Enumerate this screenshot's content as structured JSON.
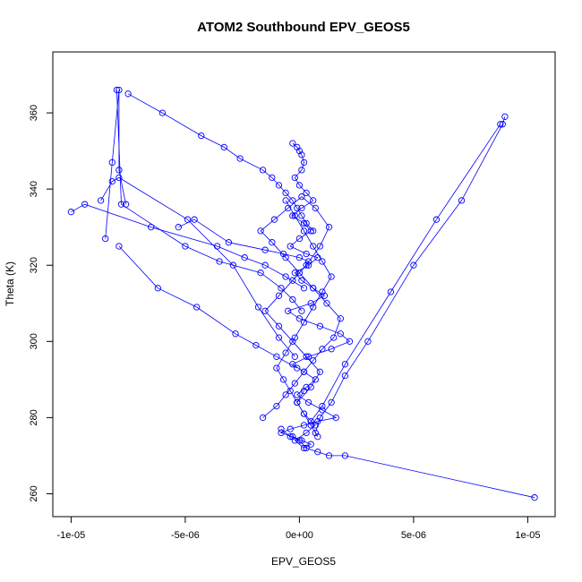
{
  "chart_data": {
    "type": "scatter",
    "title": "ATOM2 Southbound EPV_GEOS5",
    "xlabel": "EPV_GEOS5",
    "ylabel": "Theta (K)",
    "xlim": [
      -1.08e-05,
      1.12e-05
    ],
    "ylim": [
      254,
      376
    ],
    "x_ticks": [
      -1e-05,
      -5e-06,
      0,
      5e-06,
      1e-05
    ],
    "x_tick_labels": [
      "-1e-05",
      "-5e-06",
      "0e+00",
      "5e-06",
      "1e-05"
    ],
    "y_ticks": [
      260,
      280,
      300,
      320,
      340,
      360
    ],
    "y_tick_labels": [
      "260",
      "280",
      "300",
      "320",
      "340",
      "360"
    ],
    "grid": false,
    "legend": "none",
    "marker": "open-circle",
    "connected": true,
    "color": "#0000ff",
    "series": [
      {
        "x": [
          -7.5e-06,
          -6e-06,
          -4.3e-06,
          -3.3e-06,
          -2.6e-06,
          -1.6e-06,
          -1.2e-06,
          -9e-07,
          -6e-07,
          -3e-07,
          -1e-07,
          1e-07,
          3e-07,
          6e-07
        ],
        "y": [
          365,
          360,
          354,
          351,
          348,
          345,
          343,
          341,
          339,
          337,
          335,
          333,
          331,
          329
        ]
      },
      {
        "x": [
          -8.5e-06,
          -8.2e-06,
          -7.9e-06,
          -7.9e-06,
          -7.6e-06
        ],
        "y": [
          327,
          347,
          366,
          345,
          336
        ]
      },
      {
        "x": [
          -8e-06,
          -7.8e-06,
          -5e-06,
          -3.5e-06,
          -1.7e-06,
          -8e-07,
          -3e-07,
          1e-07
        ],
        "y": [
          366,
          336,
          325,
          321,
          318,
          314,
          311,
          308
        ]
      },
      {
        "x": [
          -1e-05,
          -9.4e-06,
          -6.5e-06,
          -3.6e-06,
          -2.4e-06,
          -1.5e-06,
          -6e-07,
          2e-07
        ],
        "y": [
          334,
          336,
          330,
          325,
          322,
          320,
          317,
          314
        ]
      },
      {
        "x": [
          -8.7e-06,
          -8.2e-06,
          -7.9e-06,
          -4.9e-06,
          -2.9e-06,
          -1.8e-06,
          -9e-07,
          -2e-07
        ],
        "y": [
          337,
          342,
          343,
          332,
          320,
          309,
          301,
          296
        ]
      },
      {
        "x": [
          -7.9e-06,
          -6.2e-06,
          -4.5e-06,
          -2.8e-06,
          -1.9e-06,
          -1e-06,
          -1e-07
        ],
        "y": [
          325,
          314,
          309,
          302,
          299,
          296,
          293
        ]
      },
      {
        "x": [
          -5.3e-06,
          -4.6e-06,
          -3.1e-06,
          -1.5e-06,
          -7e-07,
          0,
          4e-07
        ],
        "y": [
          330,
          332,
          326,
          324,
          323,
          322,
          321
        ]
      },
      {
        "x": [
          9e-06,
          8.9e-06,
          7.1e-06,
          5e-06,
          3e-06,
          2e-06,
          1.4e-06,
          9e-07,
          7e-07
        ],
        "y": [
          359,
          357,
          337,
          320,
          300,
          291,
          284,
          280,
          276
        ]
      },
      {
        "x": [
          8.8e-06,
          6e-06,
          4e-06,
          2e-06,
          1e-06,
          5e-07
        ],
        "y": [
          357,
          332,
          313,
          294,
          283,
          279
        ]
      },
      {
        "x": [
          1.03e-05,
          2e-06,
          1.3e-06,
          8e-07,
          3e-07,
          0,
          -4e-07,
          -8e-07
        ],
        "y": [
          259,
          270,
          270,
          271,
          272,
          274,
          275,
          277
        ]
      },
      {
        "x": [
          -3e-07,
          -1e-07,
          0,
          1e-07,
          2e-07,
          1e-07,
          -2e-07,
          0,
          3e-07,
          6e-07,
          1e-07,
          -3e-07,
          2e-07,
          5e-07,
          0,
          -4e-07,
          3e-07,
          8e-07,
          4e-07,
          -2e-07,
          1e-07,
          6e-07,
          1.1e-06,
          5e-07,
          -5e-07,
          0,
          9e-07,
          1.8e-06,
          2.2e-06,
          1.4e-06,
          4e-07,
          -3e-07,
          2e-07,
          7e-07,
          3e-07,
          -1e-07,
          4e-07,
          1e-06,
          1.6e-06,
          8e-07,
          2e-07,
          -4e-07,
          -8e-07,
          -3e-07,
          1e-07,
          5e-07,
          2e-07,
          -2e-07,
          3e-07,
          7e-07,
          2e-07,
          -1e-07,
          2e-07
        ],
        "y": [
          352,
          351,
          350,
          349,
          347,
          345,
          343,
          341,
          339,
          337,
          335,
          333,
          331,
          329,
          327,
          325,
          323,
          322,
          320,
          318,
          316,
          314,
          312,
          310,
          308,
          306,
          304,
          302,
          300,
          298,
          296,
          294,
          292,
          290,
          288,
          286,
          284,
          282,
          280,
          279,
          278,
          277,
          276,
          275,
          274,
          273,
          272,
          274,
          276,
          278,
          281,
          284,
          287
        ]
      },
      {
        "x": [
          -1.6e-06,
          -1e-06,
          -6e-07,
          -2e-07,
          2e-07,
          6e-07,
          1e-06,
          1.5e-06,
          1.8e-06,
          1.2e-06,
          6e-07,
          0,
          -6e-07,
          -1.2e-06,
          -1.7e-06,
          -1.1e-06,
          -5e-07,
          1e-07,
          7e-07,
          1.3e-06,
          9e-07,
          3e-07,
          -3e-07,
          -9e-07,
          -1.5e-06,
          -9e-07,
          -3e-07,
          3e-07,
          9e-07,
          5e-07,
          -1e-07
        ],
        "y": [
          280,
          283,
          286,
          289,
          292,
          295,
          298,
          301,
          306,
          310,
          314,
          318,
          322,
          326,
          329,
          332,
          335,
          338,
          335,
          330,
          325,
          320,
          316,
          312,
          308,
          304,
          300,
          296,
          292,
          288,
          284
        ]
      },
      {
        "x": [
          8e-07,
          5e-07,
          2e-07,
          -1e-07,
          -4e-07,
          -7e-07,
          -1e-06,
          -6e-07,
          -2e-07,
          2e-07,
          6e-07,
          1e-06,
          1.4e-06,
          1e-06,
          6e-07,
          2e-07,
          -2e-07,
          -6e-07
        ],
        "y": [
          275,
          278,
          281,
          284,
          287,
          290,
          293,
          297,
          301,
          305,
          309,
          313,
          317,
          321,
          325,
          329,
          333,
          337
        ]
      }
    ]
  }
}
